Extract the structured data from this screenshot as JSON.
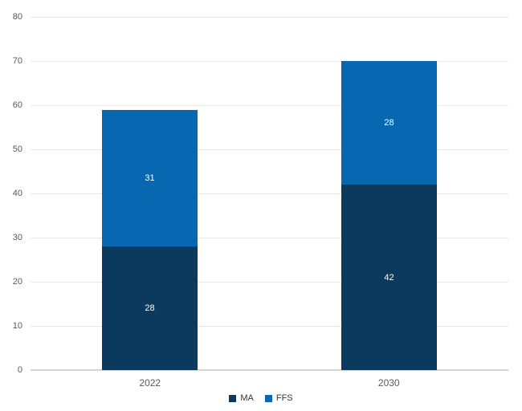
{
  "chart_data": {
    "type": "bar",
    "stacked": true,
    "title": "",
    "xlabel": "",
    "ylabel": "",
    "categories": [
      "2022",
      "2030"
    ],
    "series": [
      {
        "name": "MA",
        "color": "#0B3A5E",
        "values": [
          28,
          42
        ]
      },
      {
        "name": "FFS",
        "color": "#0768B1",
        "values": [
          31,
          28
        ]
      }
    ],
    "totals": [
      59,
      70
    ],
    "ylim": [
      0,
      80
    ],
    "yticks": [
      0,
      10,
      20,
      30,
      40,
      50,
      60,
      70,
      80
    ],
    "grid": true,
    "data_labels": true,
    "data_label_color": "#FFFFFF",
    "legend_position": "bottom"
  },
  "colors": {
    "background": "#FFFFFF",
    "grid_line": "#E6E6E6",
    "axis_line": "#D6D6D6",
    "tick_label": "#595959",
    "legend_text": "#333333"
  }
}
